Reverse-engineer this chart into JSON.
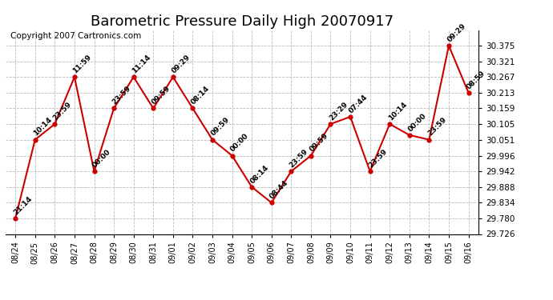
{
  "title": "Barometric Pressure Daily High 20070917",
  "copyright": "Copyright 2007 Cartronics.com",
  "x_labels": [
    "08/24",
    "08/25",
    "08/26",
    "08/27",
    "08/28",
    "08/29",
    "08/30",
    "08/31",
    "09/01",
    "09/02",
    "09/03",
    "09/04",
    "09/05",
    "09/06",
    "09/07",
    "09/08",
    "09/09",
    "09/10",
    "09/11",
    "09/12",
    "09/13",
    "09/14",
    "09/15",
    "09/16"
  ],
  "y_values": [
    29.78,
    30.051,
    30.105,
    30.267,
    29.942,
    30.159,
    30.267,
    30.159,
    30.267,
    30.159,
    30.051,
    29.996,
    29.888,
    29.834,
    29.942,
    29.996,
    30.105,
    30.13,
    29.942,
    30.105,
    30.067,
    30.051,
    30.375,
    30.213
  ],
  "time_labels": [
    "21:14",
    "10:14",
    "23:59",
    "11:59",
    "00:00",
    "23:59",
    "11:14",
    "09:59",
    "09:29",
    "08:14",
    "09:59",
    "00:00",
    "08:14",
    "08:44",
    "23:59",
    "09:59",
    "23:29",
    "07:44",
    "23:59",
    "10:14",
    "00:00",
    "23:59",
    "09:29",
    "08:59"
  ],
  "y_min": 29.726,
  "y_max": 30.429,
  "y_ticks": [
    29.726,
    29.78,
    29.834,
    29.888,
    29.942,
    29.996,
    30.051,
    30.105,
    30.159,
    30.213,
    30.267,
    30.321,
    30.375
  ],
  "line_color": "#cc0000",
  "marker_color": "#cc0000",
  "background_color": "#ffffff",
  "grid_color": "#bbbbbb",
  "title_fontsize": 13,
  "copyright_fontsize": 7.5
}
